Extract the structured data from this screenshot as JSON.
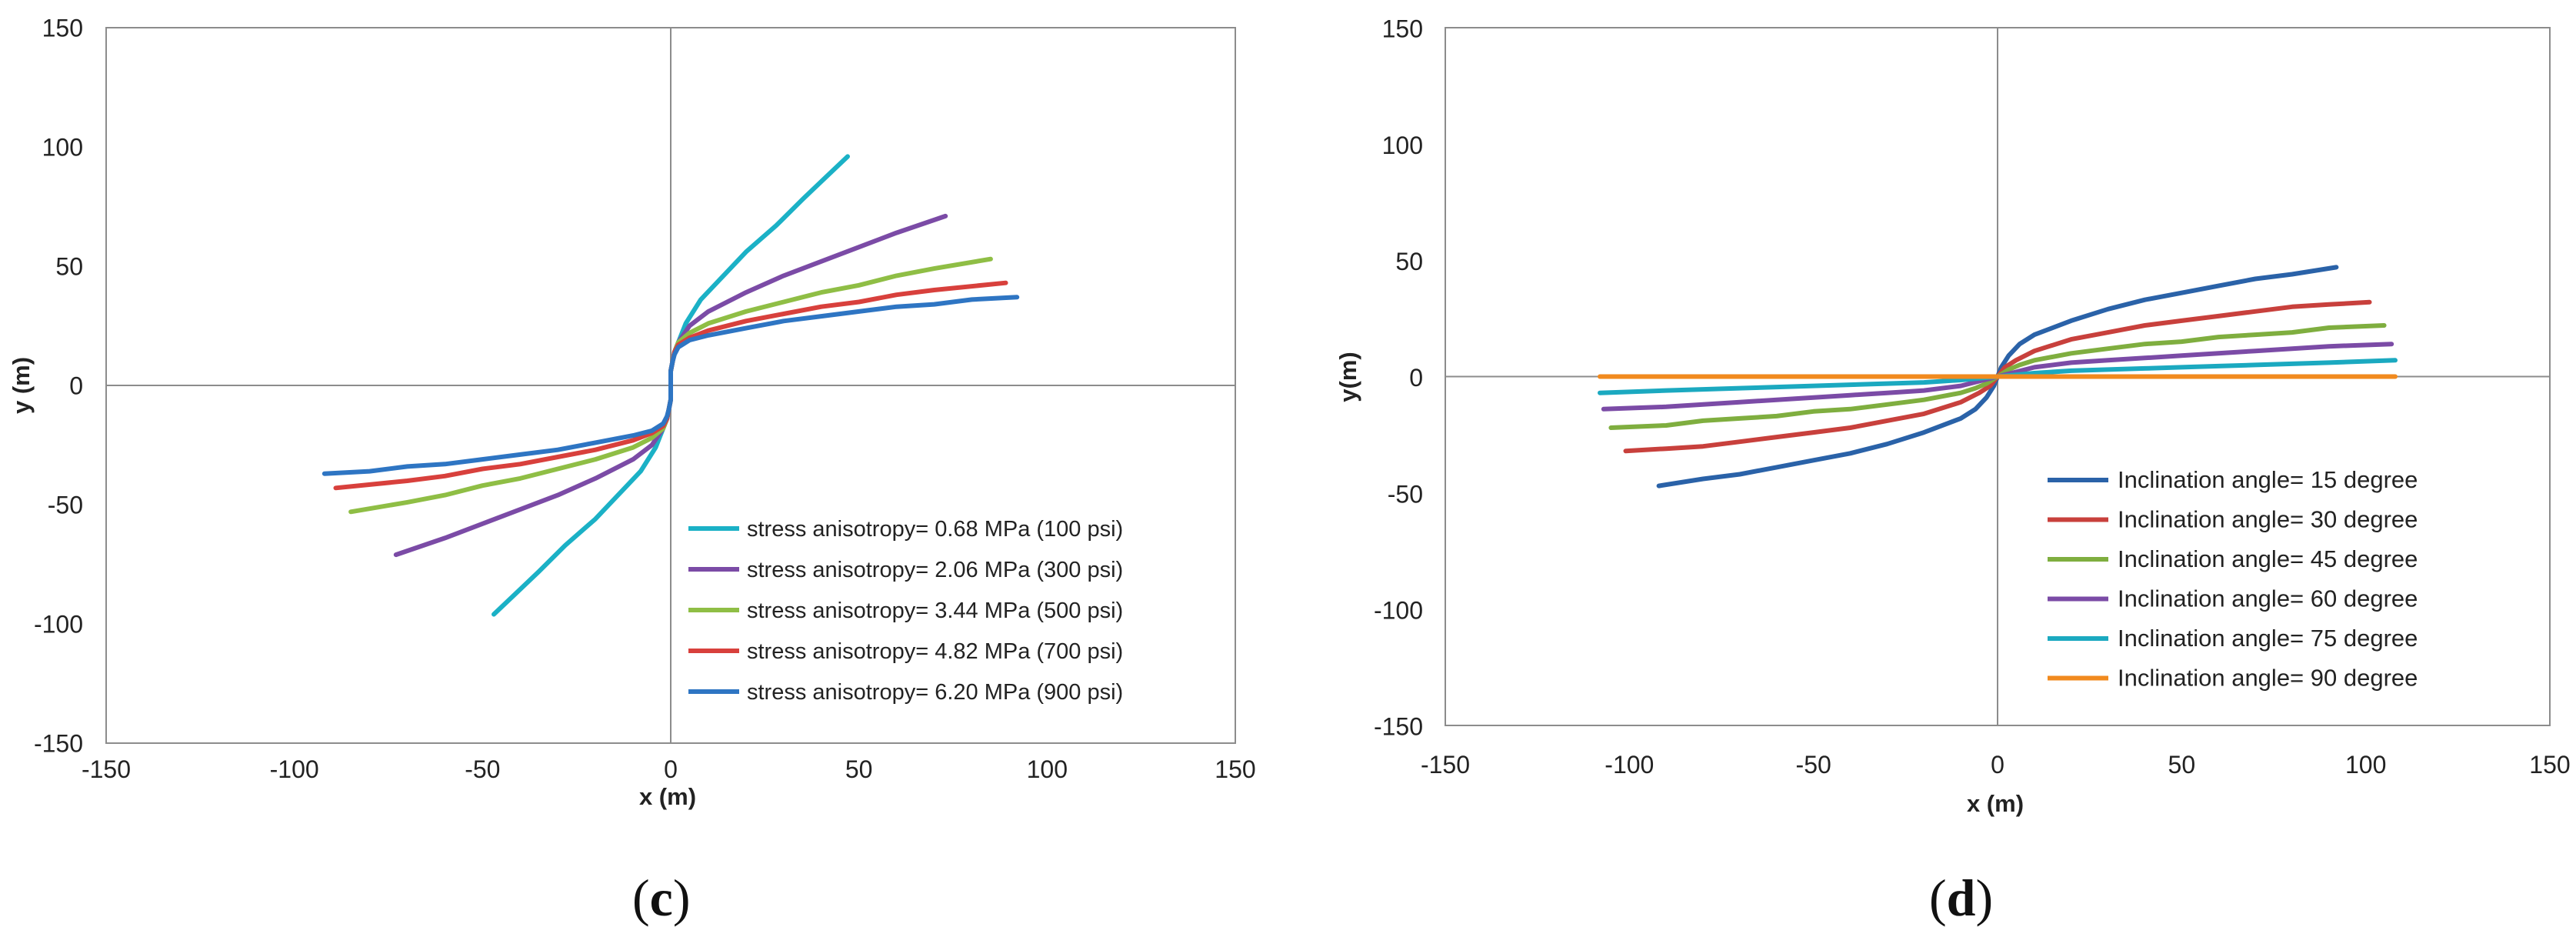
{
  "chart_data": [
    {
      "id": "c",
      "type": "line",
      "panel_label": "c",
      "xlabel": "x (m)",
      "ylabel": "y (m)",
      "xlim": [
        -150,
        150
      ],
      "ylim": [
        -150,
        150
      ],
      "xticks": [
        -150,
        -100,
        -50,
        0,
        50,
        100,
        150
      ],
      "yticks": [
        -150,
        -100,
        -50,
        0,
        50,
        100,
        150
      ],
      "grid": false,
      "legend_position": "bottom-right",
      "series": [
        {
          "name": "stress anisotropy= 0.68 MPa (100 psi)",
          "color": "#1BB1C6",
          "points": [
            [
              0,
              0
            ],
            [
              0,
              3
            ],
            [
              0,
              6
            ],
            [
              0.5,
              10
            ],
            [
              1,
              14
            ],
            [
              2,
              18
            ],
            [
              4,
              26
            ],
            [
              8,
              36
            ],
            [
              14,
              46
            ],
            [
              20,
              56
            ],
            [
              28,
              67
            ],
            [
              35,
              78
            ],
            [
              41,
              87
            ],
            [
              47,
              96
            ]
          ]
        },
        {
          "name": "stress anisotropy= 2.06 MPa (300 psi)",
          "color": "#7B4BA6",
          "points": [
            [
              0,
              0
            ],
            [
              0,
              3
            ],
            [
              0,
              6
            ],
            [
              0.5,
              10
            ],
            [
              1,
              14
            ],
            [
              2,
              18
            ],
            [
              5,
              25
            ],
            [
              10,
              31
            ],
            [
              20,
              39
            ],
            [
              30,
              46
            ],
            [
              40,
              52
            ],
            [
              50,
              58
            ],
            [
              60,
              64
            ],
            [
              73,
              71
            ]
          ]
        },
        {
          "name": "stress anisotropy= 3.44 MPa (500 psi)",
          "color": "#8FBE45",
          "points": [
            [
              0,
              0
            ],
            [
              0,
              3
            ],
            [
              0,
              6
            ],
            [
              0.5,
              10
            ],
            [
              1,
              14
            ],
            [
              2,
              18
            ],
            [
              5,
              22
            ],
            [
              10,
              26
            ],
            [
              20,
              31
            ],
            [
              30,
              35
            ],
            [
              40,
              39
            ],
            [
              50,
              42
            ],
            [
              60,
              46
            ],
            [
              70,
              49
            ],
            [
              85,
              53
            ]
          ]
        },
        {
          "name": "stress anisotropy= 4.82 MPa (700 psi)",
          "color": "#D8403C",
          "points": [
            [
              0,
              0
            ],
            [
              0,
              3
            ],
            [
              0,
              6
            ],
            [
              0.5,
              10
            ],
            [
              1,
              14
            ],
            [
              2,
              17
            ],
            [
              5,
              20
            ],
            [
              10,
              23
            ],
            [
              20,
              27
            ],
            [
              30,
              30
            ],
            [
              40,
              33
            ],
            [
              50,
              35
            ],
            [
              60,
              38
            ],
            [
              70,
              40
            ],
            [
              89,
              43
            ]
          ]
        },
        {
          "name": "stress anisotropy= 6.20 MPa (900 psi)",
          "color": "#2E75C3",
          "points": [
            [
              0,
              0
            ],
            [
              0,
              3
            ],
            [
              0,
              6
            ],
            [
              0.5,
              10
            ],
            [
              1,
              13
            ],
            [
              2,
              16
            ],
            [
              5,
              19
            ],
            [
              10,
              21
            ],
            [
              20,
              24
            ],
            [
              30,
              27
            ],
            [
              40,
              29
            ],
            [
              50,
              31
            ],
            [
              60,
              33
            ],
            [
              70,
              34
            ],
            [
              80,
              36
            ],
            [
              92,
              37
            ]
          ]
        }
      ]
    },
    {
      "id": "d",
      "type": "line",
      "panel_label": "d",
      "xlabel": "x (m)",
      "ylabel": "y(m)",
      "xlim": [
        -150,
        150
      ],
      "ylim": [
        -150,
        150
      ],
      "xticks": [
        -150,
        -100,
        -50,
        0,
        50,
        100,
        150
      ],
      "yticks": [
        -150,
        -100,
        -50,
        0,
        50,
        100,
        150
      ],
      "grid": false,
      "legend_position": "bottom-right",
      "series": [
        {
          "name": "Inclination angle= 15 degree",
          "color": "#2A62A8",
          "points": [
            [
              0,
              0
            ],
            [
              1,
              4
            ],
            [
              3,
              9
            ],
            [
              6,
              14
            ],
            [
              10,
              18
            ],
            [
              20,
              24
            ],
            [
              30,
              29
            ],
            [
              40,
              33
            ],
            [
              50,
              36
            ],
            [
              60,
              39
            ],
            [
              70,
              42
            ],
            [
              80,
              44
            ],
            [
              92,
              47
            ]
          ]
        },
        {
          "name": "Inclination angle= 30 degree",
          "color": "#C8403C",
          "points": [
            [
              0,
              0
            ],
            [
              2,
              4
            ],
            [
              5,
              7
            ],
            [
              10,
              11
            ],
            [
              20,
              16
            ],
            [
              30,
              19
            ],
            [
              40,
              22
            ],
            [
              50,
              24
            ],
            [
              60,
              26
            ],
            [
              70,
              28
            ],
            [
              80,
              30
            ],
            [
              90,
              31
            ],
            [
              101,
              32
            ]
          ]
        },
        {
          "name": "Inclination angle= 45 degree",
          "color": "#7FAE3F",
          "points": [
            [
              0,
              0
            ],
            [
              3,
              3
            ],
            [
              6,
              5
            ],
            [
              10,
              7
            ],
            [
              20,
              10
            ],
            [
              30,
              12
            ],
            [
              40,
              14
            ],
            [
              50,
              15
            ],
            [
              60,
              17
            ],
            [
              70,
              18
            ],
            [
              80,
              19
            ],
            [
              90,
              21
            ],
            [
              105,
              22
            ]
          ]
        },
        {
          "name": "Inclination angle= 60 degree",
          "color": "#7B4BA6",
          "points": [
            [
              0,
              0
            ],
            [
              5,
              2
            ],
            [
              10,
              4
            ],
            [
              20,
              6
            ],
            [
              30,
              7
            ],
            [
              40,
              8
            ],
            [
              50,
              9
            ],
            [
              60,
              10
            ],
            [
              70,
              11
            ],
            [
              80,
              12
            ],
            [
              90,
              13
            ],
            [
              107,
              14
            ]
          ]
        },
        {
          "name": "Inclination angle= 75 degree",
          "color": "#1BA9C0",
          "points": [
            [
              0,
              0
            ],
            [
              10,
              1.5
            ],
            [
              20,
              2.5
            ],
            [
              30,
              3
            ],
            [
              40,
              3.5
            ],
            [
              50,
              4
            ],
            [
              60,
              4.5
            ],
            [
              70,
              5
            ],
            [
              80,
              5.5
            ],
            [
              90,
              6
            ],
            [
              108,
              7
            ]
          ]
        },
        {
          "name": "Inclination angle= 90 degree",
          "color": "#F18A1E",
          "points": [
            [
              0,
              0
            ],
            [
              108,
              0
            ]
          ]
        }
      ]
    }
  ]
}
